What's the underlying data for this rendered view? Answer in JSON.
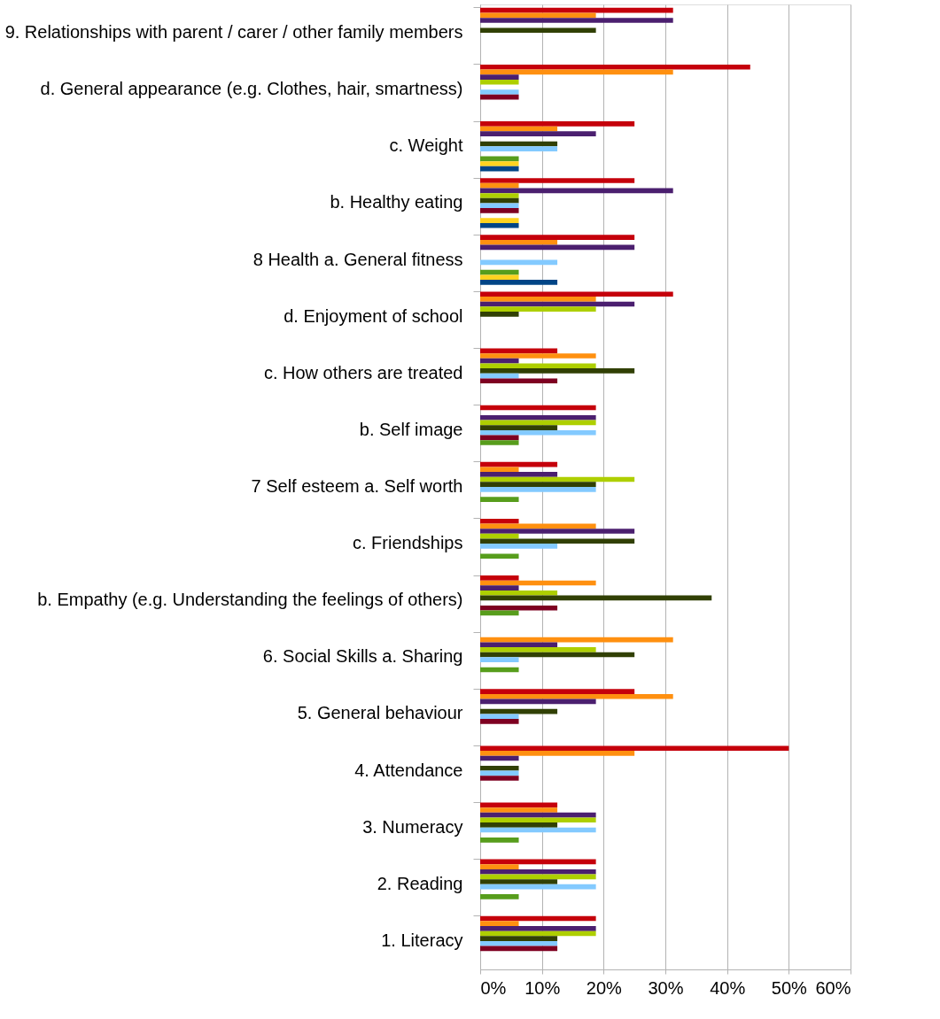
{
  "chart_data": {
    "type": "bar",
    "orientation": "horizontal",
    "categories": [
      "9. Relationships with parent / carer / other family members",
      "d. General appearance (e.g. Clothes, hair, smartness)",
      "c. Weight",
      "b. Healthy eating",
      "8 Health a. General fitness",
      "d. Enjoyment of school",
      "c. How others are treated",
      "b. Self image",
      "7 Self esteem a. Self worth",
      "c. Friendships",
      "b. Empathy (e.g. Understanding the feelings of others)",
      "6. Social Skills a. Sharing",
      "5. General behaviour",
      "4. Attendance",
      "3. Numeracy",
      "2. Reading",
      "1. Literacy"
    ],
    "series": [
      {
        "color": "#c5000b",
        "values": [
          31.25,
          43.75,
          25,
          25,
          25,
          31.25,
          12.5,
          18.75,
          12.5,
          6.25,
          6.25,
          null,
          25,
          50,
          12.5,
          18.75,
          18.75
        ]
      },
      {
        "color": "#ff9010",
        "values": [
          18.75,
          31.25,
          12.5,
          6.25,
          12.5,
          18.75,
          18.75,
          null,
          6.25,
          18.75,
          18.75,
          31.25,
          31.25,
          25,
          12.5,
          6.25,
          6.25
        ]
      },
      {
        "color": "#4b1f6f",
        "values": [
          31.25,
          6.25,
          18.75,
          31.25,
          25,
          25,
          6.25,
          18.75,
          12.5,
          25,
          6.25,
          12.5,
          18.75,
          6.25,
          18.75,
          18.75,
          18.75
        ]
      },
      {
        "color": "#aecf00",
        "values": [
          null,
          6.25,
          null,
          6.25,
          null,
          18.75,
          18.75,
          18.75,
          25,
          6.25,
          12.5,
          18.75,
          null,
          null,
          18.75,
          18.75,
          18.75
        ]
      },
      {
        "color": "#314004",
        "values": [
          18.75,
          null,
          12.5,
          6.25,
          null,
          6.25,
          25,
          12.5,
          18.75,
          25,
          37.5,
          25,
          12.5,
          6.25,
          12.5,
          12.5,
          12.5
        ]
      },
      {
        "color": "#83caff",
        "values": [
          null,
          6.25,
          12.5,
          6.25,
          12.5,
          null,
          6.25,
          18.75,
          18.75,
          12.5,
          null,
          6.25,
          6.25,
          6.25,
          18.75,
          18.75,
          12.5
        ]
      },
      {
        "color": "#7e0021",
        "values": [
          null,
          6.25,
          null,
          6.25,
          null,
          null,
          12.5,
          6.25,
          null,
          null,
          12.5,
          null,
          6.25,
          6.25,
          null,
          null,
          12.5
        ]
      },
      {
        "color": "#579d1c",
        "values": [
          null,
          null,
          6.25,
          null,
          6.25,
          null,
          null,
          6.25,
          6.25,
          6.25,
          6.25,
          6.25,
          null,
          null,
          6.25,
          6.25,
          null
        ]
      },
      {
        "color": "#ffd320",
        "values": [
          null,
          null,
          6.25,
          6.25,
          6.25,
          null,
          null,
          null,
          null,
          null,
          null,
          null,
          null,
          null,
          null,
          null,
          null
        ]
      },
      {
        "color": "#004586",
        "values": [
          null,
          null,
          6.25,
          6.25,
          12.5,
          null,
          null,
          null,
          null,
          null,
          null,
          null,
          null,
          null,
          null,
          null,
          null
        ]
      }
    ],
    "xlim": [
      0,
      60
    ],
    "xticks": [
      {
        "value": 0,
        "label": "0%"
      },
      {
        "value": 10,
        "label": "10%"
      },
      {
        "value": 20,
        "label": "20%"
      },
      {
        "value": 30,
        "label": "30%"
      },
      {
        "value": 40,
        "label": "40%"
      },
      {
        "value": 50,
        "label": "50%"
      },
      {
        "value": 60,
        "label": "60%"
      }
    ],
    "grid": "x"
  }
}
